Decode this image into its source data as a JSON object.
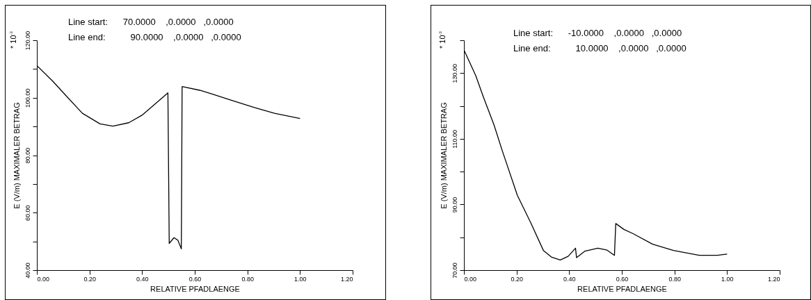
{
  "chart_data": [
    {
      "type": "line",
      "xlabel": "RELATIVE PFADLAENGE",
      "ylabel": "E (V/m) MAXIMALER BETRAG",
      "color": "#000000",
      "grid": false,
      "annotations": [
        "Line start:      70.0000    ,0.0000   ,0.0000",
        "Line end:          90.0000    ,0.0000   ,0.0000",
        "* 10$^{-3}$"
      ],
      "x": [
        0,
        0.06,
        0.112,
        0.173,
        0.24,
        0.289,
        0.349,
        0.401,
        0.463,
        0.498,
        0.503,
        0.521,
        0.536,
        0.549,
        0.552,
        0.619,
        0.666,
        0.733,
        0.827,
        0.903,
        1.0
      ],
      "values": [
        111.2,
        105.8,
        100.6,
        94.6,
        90.9,
        90.1,
        91.3,
        94.0,
        98.9,
        101.7,
        49.3,
        51.3,
        50.4,
        47.4,
        103.9,
        102.6,
        101.3,
        99.3,
        96.6,
        94.6,
        92.8
      ],
      "xlim": [
        0,
        1.2
      ],
      "xticks": [
        {
          "value": 0,
          "label": "0.00"
        },
        {
          "value": 0.2,
          "label": "0.20"
        },
        {
          "value": 0.4,
          "label": "0.40"
        },
        {
          "value": 0.6,
          "label": "0.60"
        },
        {
          "value": 0.8,
          "label": "0.80"
        },
        {
          "value": 1,
          "label": "1.00"
        },
        {
          "value": 1.2,
          "label": "1.20"
        }
      ],
      "ylim": [
        40,
        120
      ],
      "yticks": [
        {
          "value": 40,
          "label": "40.00"
        },
        {
          "value": 50,
          "label": null
        },
        {
          "value": 60,
          "label": "60.00"
        },
        {
          "value": 70,
          "label": null
        },
        {
          "value": 80,
          "label": "80.00"
        },
        {
          "value": 90,
          "label": null
        },
        {
          "value": 100,
          "label": "100.00"
        },
        {
          "value": 110,
          "label": null
        },
        {
          "value": 120,
          "label": "120.00"
        }
      ]
    },
    {
      "type": "line",
      "xlabel": "RELATIVE PFADLAENGE",
      "ylabel": "E (V/m) MAXIMALER BETRAG",
      "color": "#000000",
      "grid": false,
      "annotations": [
        "Line start:      -10.0000    ,0.0000   ,0.0000",
        "Line end:          10.0000    ,0.0000   ,0.0000",
        "* 10$^{-3}$"
      ],
      "x": [
        0,
        0.016,
        0.045,
        0.075,
        0.114,
        0.146,
        0.203,
        0.253,
        0.302,
        0.332,
        0.366,
        0.396,
        0.424,
        0.428,
        0.46,
        0.509,
        0.544,
        0.572,
        0.577,
        0.608,
        0.643,
        0.717,
        0.796,
        0.894,
        0.963,
        1.0
      ],
      "values": [
        137.1,
        134.3,
        129.2,
        122.5,
        114.3,
        106.3,
        92.8,
        84.6,
        76.0,
        74.0,
        73.1,
        74.2,
        76.7,
        73.8,
        75.8,
        76.7,
        76.1,
        74.5,
        84.2,
        82.4,
        81.1,
        77.9,
        76.0,
        74.5,
        74.5,
        74.9
      ],
      "xlim": [
        0,
        1.2
      ],
      "xticks": [
        {
          "value": 0,
          "label": "0.00"
        },
        {
          "value": 0.2,
          "label": "0.20"
        },
        {
          "value": 0.4,
          "label": "0.40"
        },
        {
          "value": 0.6,
          "label": "0.60"
        },
        {
          "value": 0.8,
          "label": "0.80"
        },
        {
          "value": 1,
          "label": "1.00"
        },
        {
          "value": 1.2,
          "label": "1.20"
        }
      ],
      "ylim": [
        70,
        140
      ],
      "yticks": [
        {
          "value": 70,
          "label": "70.00"
        },
        {
          "value": 80,
          "label": null
        },
        {
          "value": 90,
          "label": "90.00"
        },
        {
          "value": 100,
          "label": null
        },
        {
          "value": 110,
          "label": "110.00"
        },
        {
          "value": 120,
          "label": null
        },
        {
          "value": 130,
          "label": "130.00"
        },
        {
          "value": 140,
          "label": null
        }
      ]
    }
  ]
}
